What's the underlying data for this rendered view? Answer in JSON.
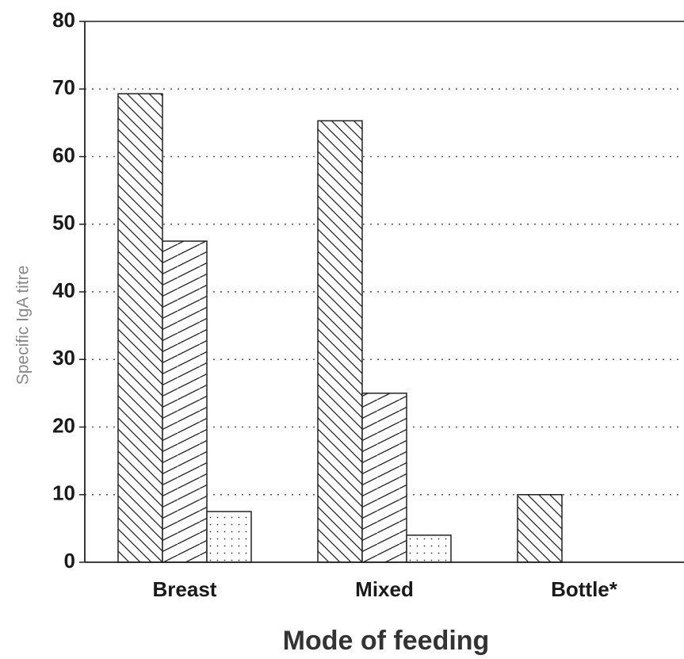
{
  "chart_data": {
    "type": "bar",
    "y_label": "Specific IgA titre",
    "x_label": "Mode of feeding",
    "categories": [
      "Breast",
      "Mixed",
      "Bottle*"
    ],
    "series": [
      {
        "color": "#222222",
        "hatch": "backslash",
        "values": [
          69.3,
          65.3,
          10
        ]
      },
      {
        "color": "#222222",
        "hatch": "slash",
        "values": [
          47.5,
          25,
          0
        ]
      },
      {
        "color": "#222222",
        "hatch": "dots",
        "values": [
          7.5,
          4,
          0
        ]
      }
    ],
    "ylim": [
      0,
      80
    ],
    "yticks": [
      0,
      10,
      20,
      30,
      40,
      50,
      60,
      70,
      80
    ],
    "grid": true
  }
}
